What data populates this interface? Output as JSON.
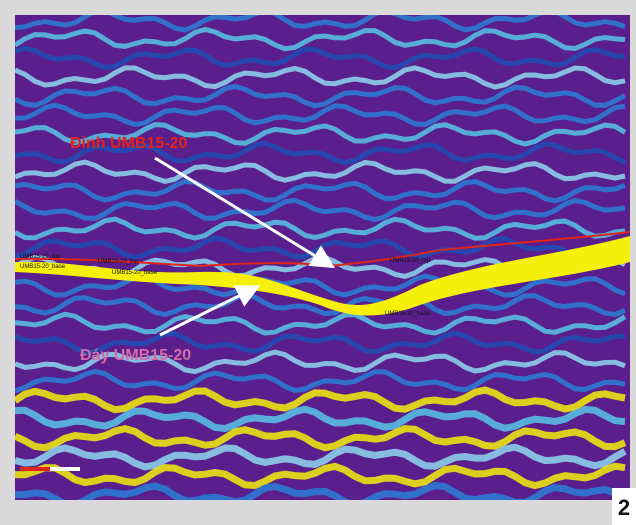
{
  "annotations": {
    "top_label": "Đỉnh UMB15-20",
    "base_label": "Đáy UMB15-20"
  },
  "horizon_labels": [
    "UMB15-20_top",
    "UMB15-20_base",
    "UMB15-20_top",
    "UMB15-20_base",
    "UMB15-20_top",
    "UMB15-20_base"
  ],
  "figure_number": "2"
}
